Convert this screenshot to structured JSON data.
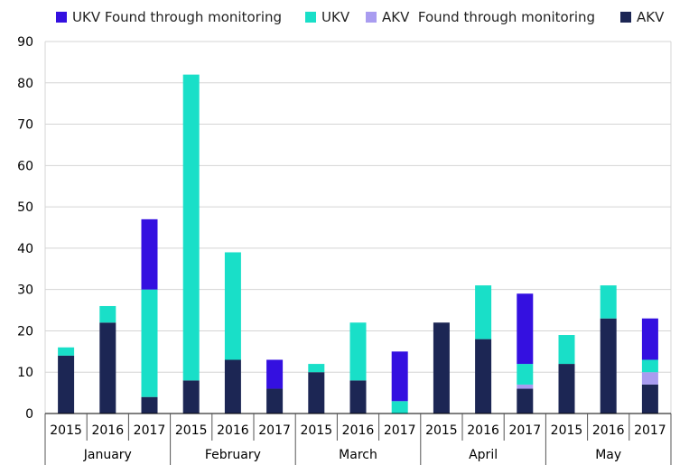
{
  "chart_data": {
    "type": "bar",
    "stacked": true,
    "title": "",
    "xlabel": "",
    "ylabel": "",
    "ylim": [
      0,
      90
    ],
    "yticks": [
      0,
      10,
      20,
      30,
      40,
      50,
      60,
      70,
      80,
      90
    ],
    "grid": true,
    "legend_position": "top",
    "groups": [
      "January",
      "February",
      "March",
      "April",
      "May"
    ],
    "years": [
      "2015",
      "2016",
      "2017"
    ],
    "categories": [
      "January 2015",
      "January 2016",
      "January 2017",
      "February 2015",
      "February 2016",
      "February 2017",
      "March 2015",
      "March 2016",
      "March 2017",
      "April 2015",
      "April 2016",
      "April 2017",
      "May 2015",
      "May 2016",
      "May 2017"
    ],
    "series": [
      {
        "name": "AKV",
        "color": "#1c2654",
        "values": [
          14,
          22,
          4,
          8,
          13,
          6,
          10,
          8,
          0,
          22,
          18,
          6,
          12,
          23,
          7
        ]
      },
      {
        "name": "AKV  Found through monitoring",
        "color": "#a99cf0",
        "values": [
          0,
          0,
          0,
          0,
          0,
          0,
          0,
          0,
          0,
          0,
          0,
          1,
          0,
          0,
          3
        ]
      },
      {
        "name": "UKV",
        "color": "#19dfc8",
        "values": [
          2,
          4,
          26,
          74,
          26,
          0,
          2,
          14,
          3,
          0,
          13,
          5,
          7,
          8,
          3
        ]
      },
      {
        "name": "UKV Found through monitoring",
        "color": "#3410e0",
        "values": [
          0,
          0,
          17,
          0,
          0,
          7,
          0,
          0,
          12,
          0,
          0,
          17,
          0,
          0,
          10
        ]
      }
    ]
  },
  "legend": [
    {
      "label": "UKV Found through monitoring",
      "color": "#3410e0"
    },
    {
      "label": "UKV",
      "color": "#19dfc8"
    },
    {
      "label": "AKV  Found through monitoring",
      "color": "#a99cf0"
    },
    {
      "label": "AKV",
      "color": "#1c2654"
    }
  ]
}
